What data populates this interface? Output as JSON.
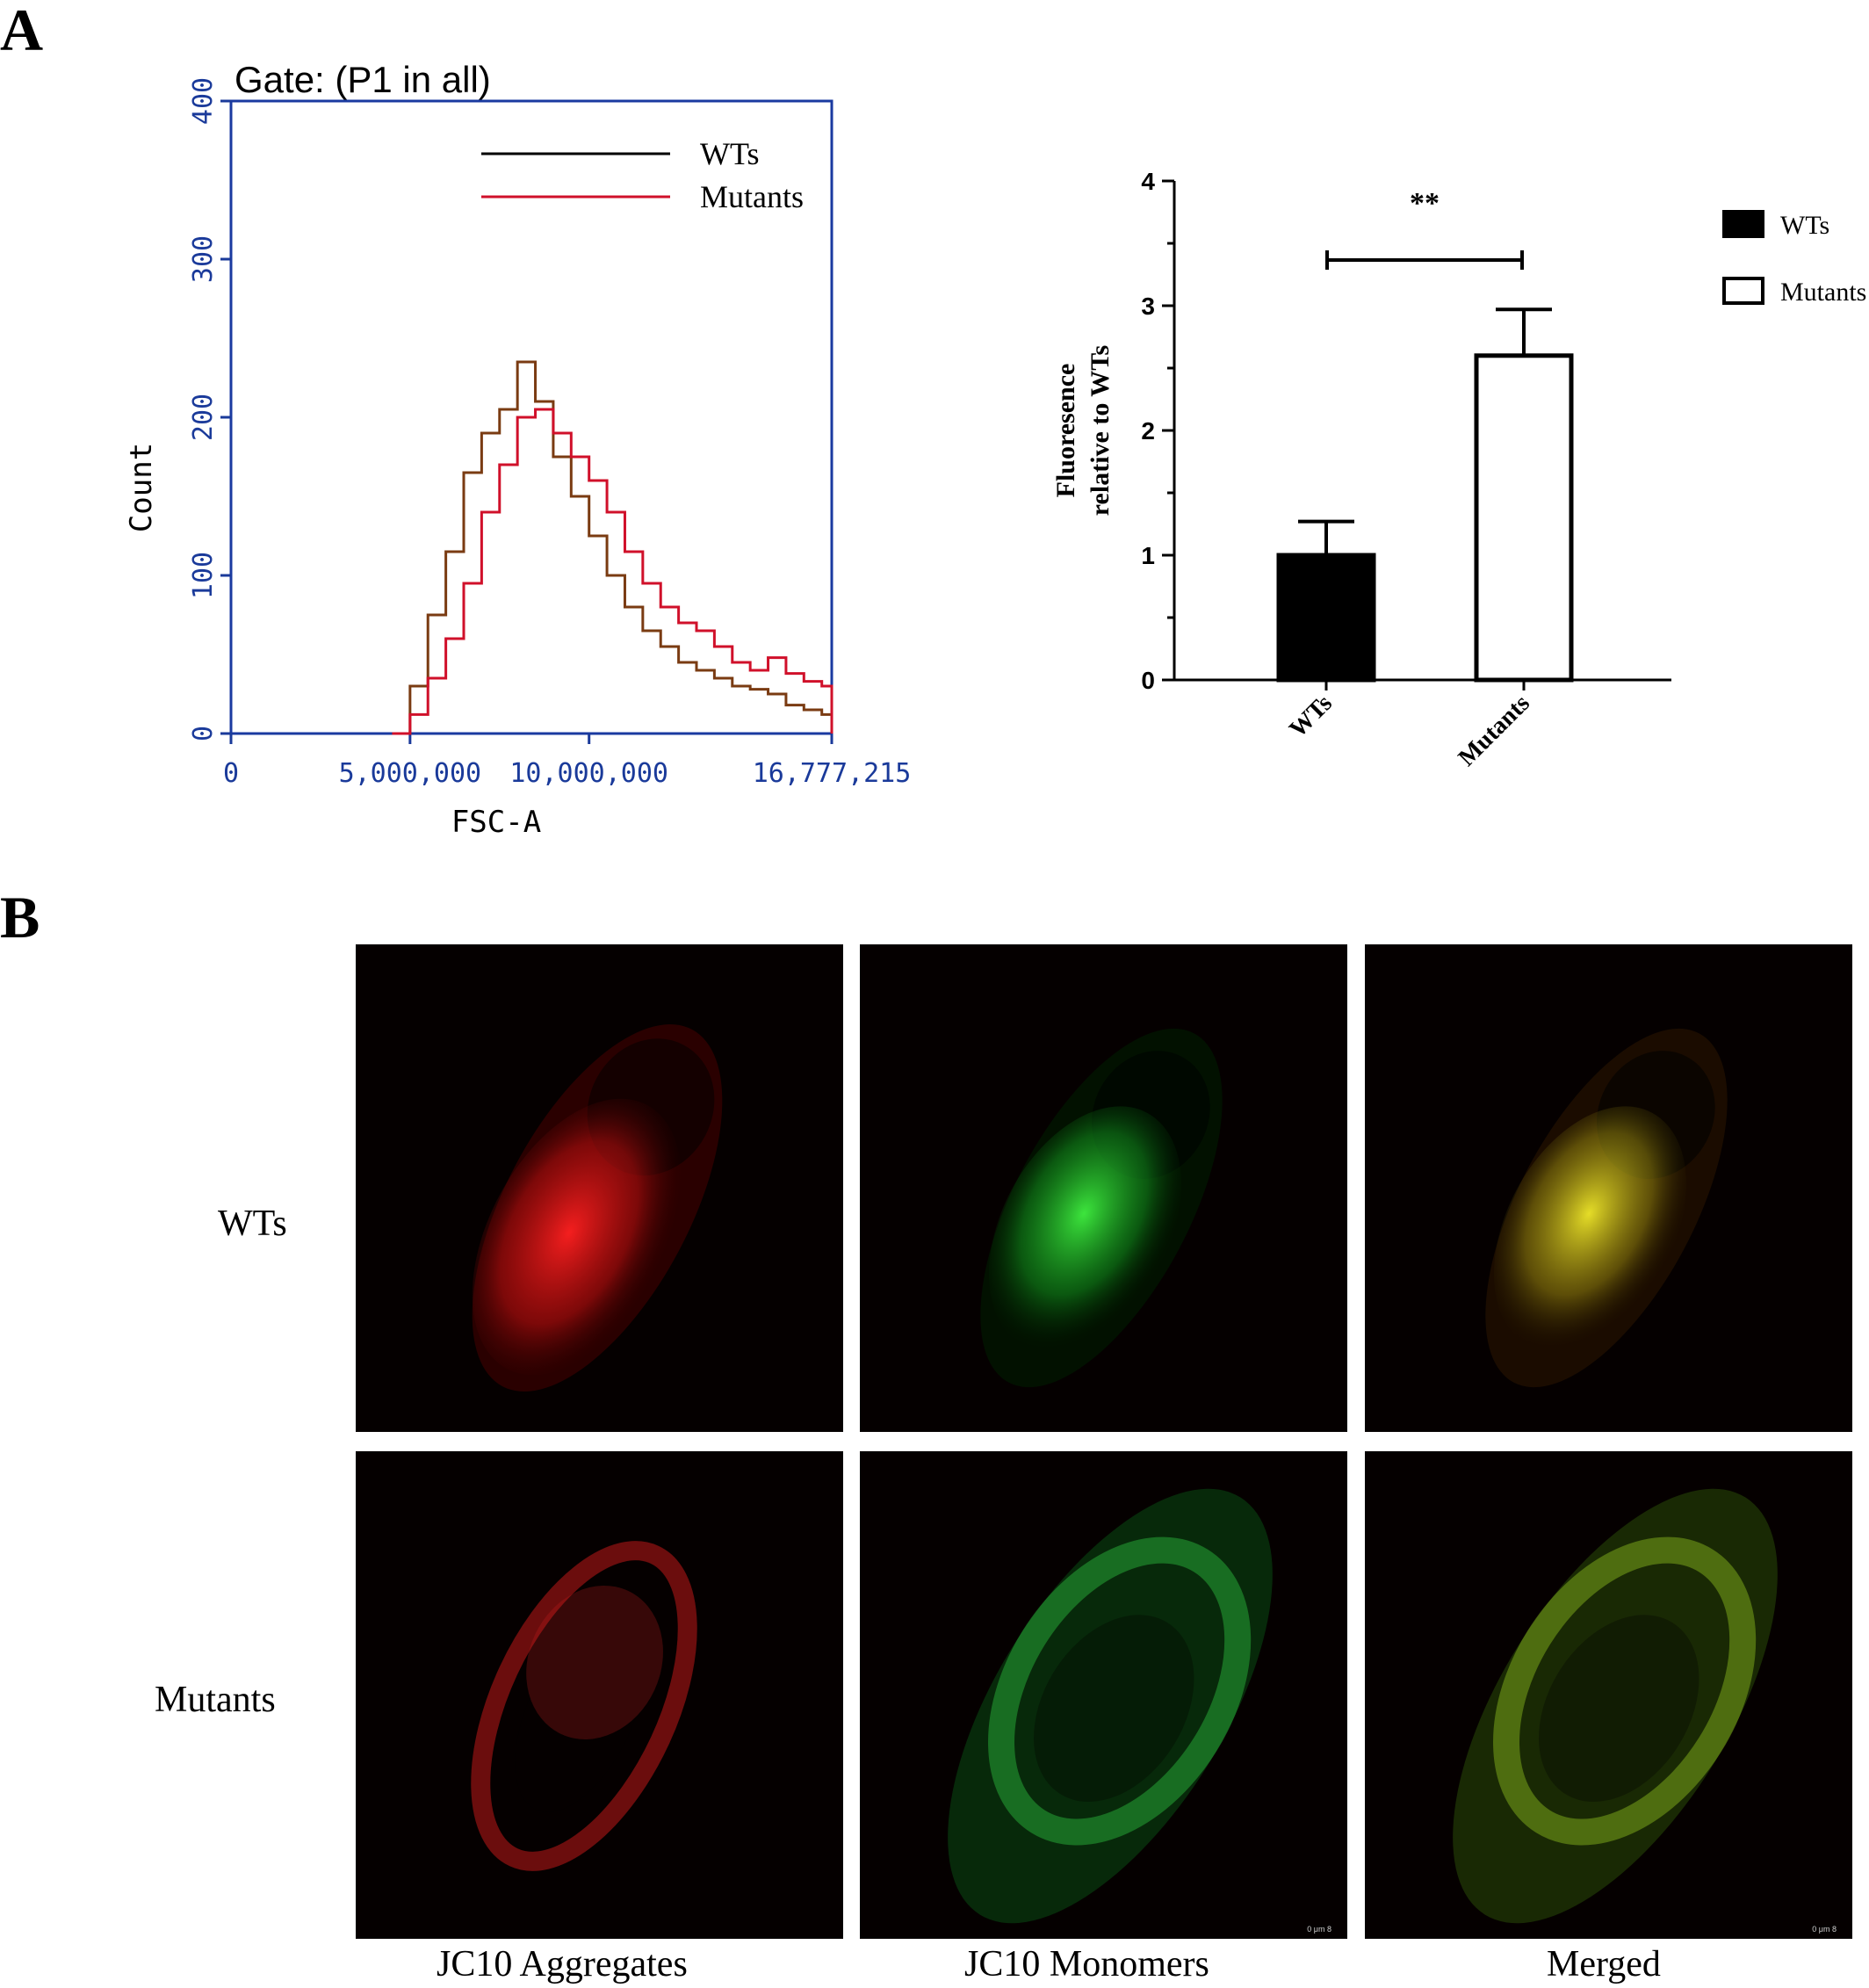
{
  "panels": {
    "a": "A",
    "b": "B"
  },
  "chart_data": [
    {
      "type": "line",
      "title": "Gate: (P1 in all)",
      "xlabel": "FSC-A",
      "ylabel": "Count",
      "xlim": [
        0,
        16777215
      ],
      "ylim": [
        0,
        400
      ],
      "xticks": [
        0,
        5000000,
        10000000,
        16777215
      ],
      "xtick_labels": [
        "0",
        "5,000,000",
        "10,000,000",
        "16,777,215"
      ],
      "yticks": [
        0,
        100,
        200,
        300,
        400
      ],
      "ytick_labels": [
        "0",
        "100",
        "200",
        "300",
        "400"
      ],
      "legend_position": "top-right",
      "series": [
        {
          "name": "WTs",
          "color": "#7a3b12",
          "x": [
            4500000,
            5000000,
            5500000,
            6000000,
            6500000,
            7000000,
            7500000,
            8000000,
            8500000,
            9000000,
            9500000,
            10000000,
            10500000,
            11000000,
            11500000,
            12000000,
            12500000,
            13000000,
            13500000,
            14000000,
            14500000,
            15000000,
            15500000,
            16000000,
            16500000,
            16777215
          ],
          "y": [
            0,
            30,
            75,
            115,
            165,
            190,
            205,
            235,
            210,
            175,
            150,
            125,
            100,
            80,
            65,
            55,
            45,
            40,
            35,
            30,
            28,
            25,
            18,
            15,
            12,
            0
          ]
        },
        {
          "name": "Mutants",
          "color": "#d0102a",
          "x": [
            4500000,
            5000000,
            5500000,
            6000000,
            6500000,
            7000000,
            7500000,
            8000000,
            8500000,
            9000000,
            9500000,
            10000000,
            10500000,
            11000000,
            11500000,
            12000000,
            12500000,
            13000000,
            13500000,
            14000000,
            14500000,
            15000000,
            15500000,
            16000000,
            16500000,
            16777215
          ],
          "y": [
            0,
            12,
            35,
            60,
            95,
            140,
            170,
            200,
            205,
            190,
            175,
            160,
            140,
            115,
            95,
            80,
            70,
            65,
            55,
            45,
            40,
            48,
            38,
            33,
            30,
            0
          ]
        }
      ]
    },
    {
      "type": "bar",
      "ylabel": "Fluoresence relative to WTs",
      "categories": [
        "WTs",
        "Mutants"
      ],
      "values": [
        1.0,
        2.6
      ],
      "errors": [
        0.27,
        0.37
      ],
      "ylim": [
        0,
        4
      ],
      "yticks": [
        0,
        1,
        2,
        3,
        4
      ],
      "ytick_labels": [
        "0",
        "1",
        "2",
        "3",
        "4"
      ],
      "annotation": "**",
      "legend_position": "right",
      "legend": [
        {
          "name": "WTs",
          "fill": "#000000"
        },
        {
          "name": "Mutants",
          "fill": "#ffffff"
        }
      ]
    }
  ],
  "micrographs": {
    "rows": [
      "WTs",
      "Mutants"
    ],
    "columns": [
      "JC10 Aggregates",
      "JC10 Monomers",
      "Merged"
    ],
    "scale_bar": "0   μm   8",
    "channel_colors": [
      "#ff2a2a",
      "#2ee04a",
      "#d8d02a"
    ]
  }
}
